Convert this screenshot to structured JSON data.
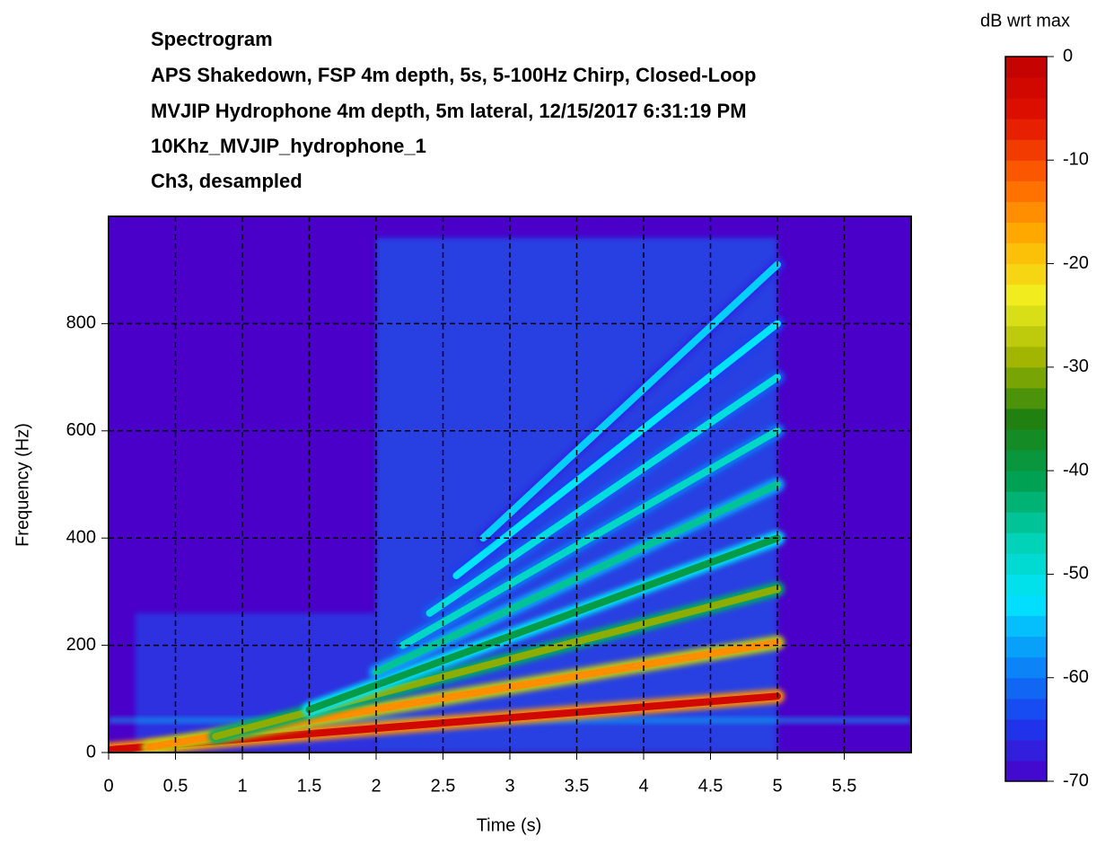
{
  "chart_data": {
    "type": "spectrogram",
    "title_lines": [
      "Spectrogram",
      "APS Shakedown, FSP 4m depth, 5s, 5-100Hz Chirp, Closed-Loop",
      "MVJIP Hydrophone 4m depth, 5m lateral, 12/15/2017  6:31:19 PM",
      "10Khz_MVJIP_hydrophone_1",
      "Ch3, desampled"
    ],
    "x_label": "Time (s)",
    "y_label": "Frequency (Hz)",
    "xlim": [
      0,
      6
    ],
    "xticks": [
      0,
      0.5,
      1,
      1.5,
      2,
      2.5,
      3,
      3.5,
      4,
      4.5,
      5,
      5.5
    ],
    "ylim": [
      0,
      1000
    ],
    "yticks": [
      0,
      200,
      400,
      600,
      800
    ],
    "grid": true,
    "colorbar_label": "dB wrt max",
    "clim": [
      -70,
      0
    ],
    "cticks": [
      0,
      -10,
      -20,
      -30,
      -40,
      -50,
      -60,
      -70
    ],
    "colormap": [
      "#4a00c8",
      "#1a3cf0",
      "#0a8cf8",
      "#00e6ff",
      "#00d2b4",
      "#00a050",
      "#208010",
      "#a0b400",
      "#f0f020",
      "#ffb000",
      "#ff6000",
      "#e01000",
      "#c00000"
    ],
    "regions": [
      {
        "t": [
          0.2,
          2.0
        ],
        "f": [
          0,
          260
        ],
        "db": -62
      },
      {
        "t": [
          2.0,
          5.0
        ],
        "f": [
          0,
          960
        ],
        "db": -60
      },
      {
        "t": [
          0,
          6
        ],
        "f": [
          55,
          65
        ],
        "db": -55
      }
    ],
    "components": [
      {
        "t": [
          0,
          5
        ],
        "f": [
          5,
          105
        ],
        "db": -3
      },
      {
        "t": [
          0.3,
          5
        ],
        "f": [
          10,
          205
        ],
        "db": -15
      },
      {
        "t": [
          0.8,
          5
        ],
        "f": [
          30,
          305
        ],
        "db": -30
      },
      {
        "t": [
          1.5,
          5
        ],
        "f": [
          80,
          400
        ],
        "db": -40
      },
      {
        "t": [
          2.0,
          5
        ],
        "f": [
          150,
          500
        ],
        "db": -45
      },
      {
        "t": [
          2.2,
          5
        ],
        "f": [
          200,
          600
        ],
        "db": -48
      },
      {
        "t": [
          2.4,
          5
        ],
        "f": [
          260,
          700
        ],
        "db": -50
      },
      {
        "t": [
          2.6,
          5
        ],
        "f": [
          330,
          800
        ],
        "db": -52
      },
      {
        "t": [
          2.8,
          5
        ],
        "f": [
          400,
          910
        ],
        "db": -54
      }
    ]
  }
}
